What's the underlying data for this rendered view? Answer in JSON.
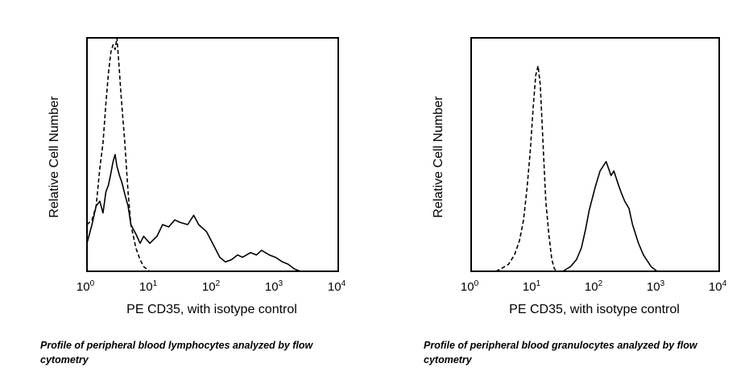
{
  "chart_data": [
    {
      "type": "line",
      "xscale": "log",
      "xlim": [
        1,
        10000
      ],
      "xticks": [
        {
          "base": "10",
          "exp": "0"
        },
        {
          "base": "10",
          "exp": "1"
        },
        {
          "base": "10",
          "exp": "2"
        },
        {
          "base": "10",
          "exp": "3"
        },
        {
          "base": "10",
          "exp": "4"
        }
      ],
      "xlabel": "PE CD35, with isotype control",
      "ylabel": "Relative Cell Number",
      "caption": "Profile of peripheral blood lymphocytes analyzed by flow cytometry",
      "series": [
        {
          "style": "solid",
          "x": [
            1,
            1.2,
            1.4,
            1.6,
            1.8,
            2.0,
            2.2,
            2.4,
            2.6,
            2.8,
            3.0,
            3.3,
            3.6,
            4.0,
            4.5,
            5,
            6,
            7,
            8,
            10,
            13,
            16,
            20,
            25,
            30,
            40,
            50,
            60,
            80,
            100,
            130,
            160,
            200,
            250,
            300,
            400,
            500,
            600,
            800,
            1000,
            1300,
            1600,
            2000,
            2500,
            3000,
            4000,
            5000,
            10000
          ],
          "y": [
            0.12,
            0.2,
            0.28,
            0.3,
            0.25,
            0.34,
            0.37,
            0.42,
            0.47,
            0.5,
            0.45,
            0.41,
            0.38,
            0.33,
            0.28,
            0.2,
            0.16,
            0.12,
            0.15,
            0.12,
            0.15,
            0.2,
            0.19,
            0.22,
            0.21,
            0.2,
            0.24,
            0.2,
            0.17,
            0.12,
            0.06,
            0.04,
            0.05,
            0.07,
            0.06,
            0.08,
            0.07,
            0.09,
            0.07,
            0.06,
            0.04,
            0.03,
            0.01,
            0.0,
            0.0,
            0.0,
            0.0,
            0.0
          ]
        },
        {
          "style": "dashed",
          "x": [
            1,
            1.2,
            1.4,
            1.6,
            1.8,
            2.0,
            2.2,
            2.4,
            2.6,
            2.8,
            3.0,
            3.2,
            3.5,
            4.0,
            4.5,
            5,
            6,
            7,
            8,
            10,
            13,
            20,
            50,
            100,
            10000
          ],
          "y": [
            0.2,
            0.22,
            0.28,
            0.44,
            0.55,
            0.72,
            0.85,
            0.94,
            0.97,
            0.95,
            1.0,
            0.9,
            0.75,
            0.55,
            0.34,
            0.2,
            0.1,
            0.05,
            0.02,
            0.0,
            0.0,
            0.0,
            0.0,
            0.0,
            0.0
          ]
        }
      ]
    },
    {
      "type": "line",
      "xscale": "log",
      "xlim": [
        1,
        10000
      ],
      "xticks": [
        {
          "base": "10",
          "exp": "0"
        },
        {
          "base": "10",
          "exp": "1"
        },
        {
          "base": "10",
          "exp": "2"
        },
        {
          "base": "10",
          "exp": "3"
        },
        {
          "base": "10",
          "exp": "4"
        }
      ],
      "xlabel": "PE CD35, with isotype control",
      "ylabel": "Relative Cell Number",
      "caption": "Profile of peripheral blood granulocytes analyzed by flow cytometry",
      "series": [
        {
          "style": "solid",
          "x": [
            30,
            40,
            50,
            60,
            70,
            80,
            100,
            120,
            150,
            180,
            200,
            230,
            260,
            300,
            350,
            400,
            500,
            600,
            800,
            1000,
            1300
          ],
          "y": [
            0.0,
            0.02,
            0.05,
            0.1,
            0.18,
            0.26,
            0.36,
            0.43,
            0.47,
            0.41,
            0.43,
            0.38,
            0.34,
            0.3,
            0.27,
            0.2,
            0.12,
            0.07,
            0.02,
            0.0,
            0.0
          ]
        },
        {
          "style": "dashed",
          "x": [
            2.5,
            3,
            4,
            5,
            6,
            7,
            8,
            9,
            10,
            11,
            12,
            13,
            14,
            15,
            16,
            18,
            20,
            22,
            25
          ],
          "y": [
            0.0,
            0.01,
            0.03,
            0.07,
            0.13,
            0.22,
            0.36,
            0.52,
            0.7,
            0.84,
            0.88,
            0.8,
            0.62,
            0.45,
            0.3,
            0.15,
            0.05,
            0.01,
            0.0
          ]
        }
      ]
    }
  ]
}
